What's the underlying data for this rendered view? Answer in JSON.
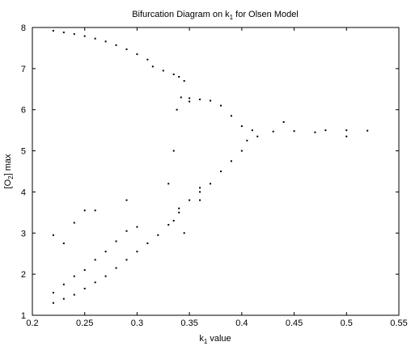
{
  "chart_data": {
    "type": "scatter",
    "title": {
      "text": "Bifurcation Diagram on k",
      "sub": "1",
      "suffix": " for Olsen Model"
    },
    "xlabel": {
      "text": "k",
      "sub": "1",
      "suffix": " value"
    },
    "ylabel": {
      "text": "[O",
      "sub": "2",
      "suffix": "] max"
    },
    "xlim": [
      0.2,
      0.55
    ],
    "ylim": [
      1,
      8
    ],
    "xticks": [
      "0.2",
      "0.25",
      "0.3",
      "0.35",
      "0.4",
      "0.45",
      "0.5",
      "0.55"
    ],
    "yticks": [
      "1",
      "2",
      "3",
      "4",
      "5",
      "6",
      "7",
      "8"
    ],
    "grid": false,
    "marker_color": "#000000",
    "series": [
      {
        "values": [
          [
            0.22,
            7.92
          ],
          [
            0.23,
            7.88
          ],
          [
            0.24,
            7.84
          ],
          [
            0.25,
            7.79
          ],
          [
            0.26,
            7.73
          ],
          [
            0.27,
            7.66
          ],
          [
            0.28,
            7.57
          ],
          [
            0.29,
            7.47
          ],
          [
            0.3,
            7.35
          ],
          [
            0.31,
            7.22
          ],
          [
            0.315,
            7.05
          ],
          [
            0.325,
            6.95
          ],
          [
            0.335,
            6.86
          ],
          [
            0.34,
            6.8
          ],
          [
            0.345,
            6.7
          ],
          [
            0.342,
            6.3
          ],
          [
            0.35,
            6.28
          ],
          [
            0.36,
            6.25
          ],
          [
            0.37,
            6.22
          ],
          [
            0.38,
            6.1
          ],
          [
            0.39,
            5.85
          ],
          [
            0.4,
            5.6
          ],
          [
            0.41,
            5.5
          ],
          [
            0.43,
            5.47
          ],
          [
            0.45,
            5.48
          ],
          [
            0.48,
            5.5
          ],
          [
            0.5,
            5.5
          ],
          [
            0.52,
            5.49
          ],
          [
            0.4,
            5.0
          ],
          [
            0.39,
            4.75
          ],
          [
            0.38,
            4.5
          ],
          [
            0.37,
            4.2
          ],
          [
            0.36,
            4.0
          ],
          [
            0.35,
            3.8
          ],
          [
            0.34,
            3.6
          ],
          [
            0.335,
            3.3
          ],
          [
            0.33,
            3.2
          ],
          [
            0.32,
            2.95
          ],
          [
            0.31,
            2.75
          ],
          [
            0.3,
            2.55
          ],
          [
            0.29,
            2.35
          ],
          [
            0.28,
            2.15
          ],
          [
            0.27,
            1.95
          ],
          [
            0.26,
            1.8
          ],
          [
            0.25,
            1.65
          ],
          [
            0.24,
            1.5
          ],
          [
            0.23,
            1.4
          ],
          [
            0.22,
            1.3
          ],
          [
            0.22,
            2.95
          ],
          [
            0.22,
            1.55
          ],
          [
            0.23,
            1.75
          ],
          [
            0.24,
            1.95
          ],
          [
            0.25,
            2.1
          ],
          [
            0.26,
            2.35
          ],
          [
            0.27,
            2.55
          ],
          [
            0.28,
            2.8
          ],
          [
            0.29,
            3.05
          ],
          [
            0.3,
            3.15
          ],
          [
            0.23,
            2.75
          ],
          [
            0.24,
            3.25
          ],
          [
            0.25,
            3.55
          ],
          [
            0.26,
            3.55
          ],
          [
            0.29,
            3.8
          ],
          [
            0.33,
            4.2
          ],
          [
            0.335,
            5.0
          ],
          [
            0.338,
            6.0
          ],
          [
            0.34,
            3.5
          ],
          [
            0.345,
            3.0
          ],
          [
            0.35,
            6.2
          ],
          [
            0.36,
            4.1
          ],
          [
            0.36,
            3.8
          ],
          [
            0.415,
            5.35
          ],
          [
            0.405,
            5.25
          ],
          [
            0.44,
            5.7
          ],
          [
            0.47,
            5.45
          ],
          [
            0.5,
            5.35
          ]
        ]
      }
    ]
  }
}
